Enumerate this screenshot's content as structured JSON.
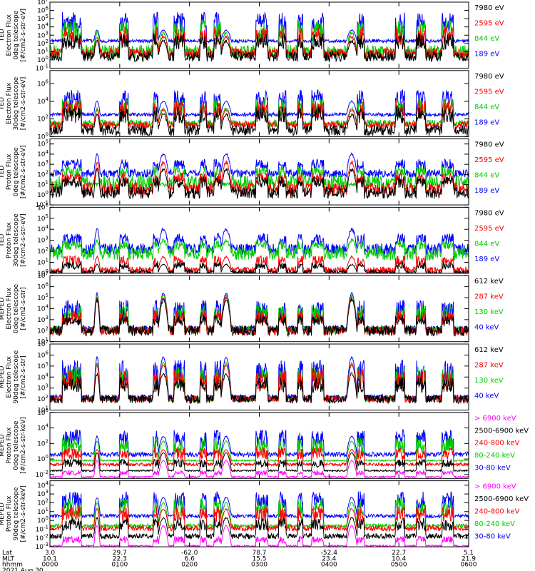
{
  "chart_data": {
    "type": "line",
    "title": "",
    "date_label": "2021 Aug 30",
    "axis_rows": [
      {
        "label": "Lat",
        "values": [
          "3.0",
          "29.7",
          "-62.0",
          "78.7",
          "-52.4",
          "22.7",
          "5.1"
        ]
      },
      {
        "label": "MLT",
        "values": [
          "10.1",
          "22.3",
          "6.6",
          "15.5",
          "23.4",
          "10.4",
          "21.9"
        ]
      },
      {
        "label": "hhmm",
        "values": [
          "0000",
          "0100",
          "0200",
          "0300",
          "0400",
          "0500",
          "0600"
        ]
      }
    ],
    "x_hours": [
      0,
      1,
      2,
      3,
      4,
      5,
      6
    ],
    "panels": [
      {
        "ylabel": [
          "TED",
          "Electron Flux",
          "0deg telescope",
          "[#/cm2-s-str-eV]"
        ],
        "yticks": [
          {
            "v": -1,
            "t": "10^-1"
          },
          {
            "v": 0,
            "t": "10^0"
          },
          {
            "v": 1,
            "t": "10^1"
          },
          {
            "v": 2,
            "t": "10^2"
          },
          {
            "v": 3,
            "t": "10^3"
          },
          {
            "v": 4,
            "t": "10^4"
          },
          {
            "v": 5,
            "t": "10^5"
          },
          {
            "v": 6,
            "t": "10^6"
          },
          {
            "v": 7,
            "t": "10^7"
          }
        ],
        "ylim": [
          -1,
          7
        ],
        "legend": [
          {
            "name": "7980 eV",
            "color": "#000000"
          },
          {
            "name": "2595 eV",
            "color": "#ff0000"
          },
          {
            "name": "844 eV",
            "color": "#00cc00"
          },
          {
            "name": "189 eV",
            "color": "#0000ff"
          }
        ],
        "series": [
          {
            "color": "#0000ff",
            "base": 2.3,
            "noise": 0.2,
            "arch": 3.6,
            "spike": 5.8
          },
          {
            "color": "#00cc00",
            "base": 1.0,
            "noise": 0.8,
            "arch": 3.3,
            "spike": 4.8
          },
          {
            "color": "#ff0000",
            "base": 0.8,
            "noise": 0.6,
            "arch": 2.8,
            "spike": 4.0
          },
          {
            "color": "#000000",
            "base": 0.4,
            "noise": 0.6,
            "arch": 2.3,
            "spike": 3.2
          }
        ]
      },
      {
        "ylabel": [
          "TED",
          "Electron Flux",
          "30deg telescope",
          "[#/cm2-s-str-eV]"
        ],
        "yticks": [
          {
            "v": 0,
            "t": "10^0"
          },
          {
            "v": 2,
            "t": "10^2"
          },
          {
            "v": 4,
            "t": "10^4"
          },
          {
            "v": 6,
            "t": "10^6"
          }
        ],
        "ylim": [
          0,
          7.5
        ],
        "legend": [
          {
            "name": "7980 eV",
            "color": "#000000"
          },
          {
            "name": "2595 eV",
            "color": "#ff0000"
          },
          {
            "name": "844 eV",
            "color": "#00cc00"
          },
          {
            "name": "189 eV",
            "color": "#0000ff"
          }
        ],
        "series": [
          {
            "color": "#0000ff",
            "base": 2.5,
            "noise": 0.2,
            "arch": 4.0,
            "spike": 5.3
          },
          {
            "color": "#00cc00",
            "base": 1.5,
            "noise": 0.4,
            "arch": 3.2,
            "spike": 4.3
          },
          {
            "color": "#ff0000",
            "base": 1.3,
            "noise": 0.4,
            "arch": 3.0,
            "spike": 4.1
          },
          {
            "color": "#000000",
            "base": 0.7,
            "noise": 0.6,
            "arch": 2.5,
            "spike": 3.4
          }
        ]
      },
      {
        "ylabel": [
          "TED",
          "Proton Flux",
          "0deg telescope",
          "[#/cm2-s-str-eV]"
        ],
        "yticks": [
          {
            "v": -1,
            "t": "10^-1"
          },
          {
            "v": 0,
            "t": "10^0"
          },
          {
            "v": 1,
            "t": "10^1"
          },
          {
            "v": 2,
            "t": "10^2"
          },
          {
            "v": 3,
            "t": "10^3"
          },
          {
            "v": 4,
            "t": "10^4"
          },
          {
            "v": 5,
            "t": "10^5"
          }
        ],
        "ylim": [
          -1,
          5.5
        ],
        "legend": [
          {
            "name": "7980 eV",
            "color": "#000000"
          },
          {
            "name": "2595 eV",
            "color": "#ff0000"
          },
          {
            "name": "844 eV",
            "color": "#00cc00"
          },
          {
            "name": "189 eV",
            "color": "#0000ff"
          }
        ],
        "series": [
          {
            "color": "#0000ff",
            "base": 2.1,
            "noise": 0.4,
            "arch": 4.0,
            "spike": 3.5
          },
          {
            "color": "#00cc00",
            "base": 1.2,
            "noise": 0.7,
            "arch": 1.0,
            "spike": 2.8
          },
          {
            "color": "#ff0000",
            "base": 0.6,
            "noise": 0.6,
            "arch": 3.2,
            "spike": 2.2
          },
          {
            "color": "#000000",
            "base": 0.2,
            "noise": 0.6,
            "arch": 2.5,
            "spike": 1.8
          }
        ]
      },
      {
        "ylabel": [
          "TED",
          "Proton Flux",
          "30deg telescope",
          "[#/cm2-s-str-eV]"
        ],
        "yticks": [
          {
            "v": 0,
            "t": "10^0"
          },
          {
            "v": 1,
            "t": "10^1"
          },
          {
            "v": 2,
            "t": "10^2"
          },
          {
            "v": 3,
            "t": "10^3"
          },
          {
            "v": 4,
            "t": "10^4"
          },
          {
            "v": 5,
            "t": "10^5"
          },
          {
            "v": 6,
            "t": "10^6"
          }
        ],
        "ylim": [
          0,
          6
        ],
        "legend": [
          {
            "name": "7980 eV",
            "color": "#000000"
          },
          {
            "name": "2595 eV",
            "color": "#ff0000"
          },
          {
            "name": "844 eV",
            "color": "#00cc00"
          },
          {
            "name": "189 eV",
            "color": "#0000ff"
          }
        ],
        "series": [
          {
            "color": "#0000ff",
            "base": 2.2,
            "noise": 0.5,
            "arch": 4.0,
            "spike": 3.6
          },
          {
            "color": "#00cc00",
            "base": 1.8,
            "noise": 0.6,
            "arch": 3.0,
            "spike": 3.0
          },
          {
            "color": "#ff0000",
            "base": 0.3,
            "noise": 0.3,
            "arch": 1.5,
            "spike": 1.6
          },
          {
            "color": "#000000",
            "base": 0.1,
            "noise": 0.2,
            "arch": 0.8,
            "spike": 1.0
          }
        ]
      },
      {
        "ylabel": [
          "MEPED",
          "Electron Flux",
          "0deg telescope",
          "[#/cm2-s-str]"
        ],
        "yticks": [
          {
            "v": 1,
            "t": "10^1"
          },
          {
            "v": 2,
            "t": "10^2"
          },
          {
            "v": 3,
            "t": "10^3"
          },
          {
            "v": 4,
            "t": "10^4"
          },
          {
            "v": 5,
            "t": "10^5"
          },
          {
            "v": 6,
            "t": "10^6"
          },
          {
            "v": 7,
            "t": "10^7"
          }
        ],
        "ylim": [
          1,
          7
        ],
        "legend": [
          {
            "name": "612 keV",
            "color": "#000000"
          },
          {
            "name": "287 keV",
            "color": "#ff0000"
          },
          {
            "name": "130 keV",
            "color": "#00cc00"
          },
          {
            "name": "40 keV",
            "color": "#0000ff"
          }
        ],
        "series": [
          {
            "color": "#0000ff",
            "base": 2.2,
            "noise": 0.25,
            "arch": 5.4,
            "spike": 4.8
          },
          {
            "color": "#00cc00",
            "base": 2.1,
            "noise": 0.3,
            "arch": 5.2,
            "spike": 4.3
          },
          {
            "color": "#ff0000",
            "base": 2.0,
            "noise": 0.4,
            "arch": 5.0,
            "spike": 3.8
          },
          {
            "color": "#000000",
            "base": 2.0,
            "noise": 0.5,
            "arch": 4.8,
            "spike": 3.4
          }
        ]
      },
      {
        "ylabel": [
          "MEPED",
          "Electron Flux",
          "90deg telescope",
          "[#/cm2-s-str]"
        ],
        "yticks": [
          {
            "v": 1,
            "t": "10^1"
          },
          {
            "v": 2,
            "t": "10^2"
          },
          {
            "v": 3,
            "t": "10^3"
          },
          {
            "v": 4,
            "t": "10^4"
          },
          {
            "v": 5,
            "t": "10^5"
          },
          {
            "v": 6,
            "t": "10^6"
          },
          {
            "v": 7,
            "t": "10^7"
          }
        ],
        "ylim": [
          1,
          7
        ],
        "legend": [
          {
            "name": "612 keV",
            "color": "#000000"
          },
          {
            "name": "287 keV",
            "color": "#ff0000"
          },
          {
            "name": "130 keV",
            "color": "#00cc00"
          },
          {
            "name": "40 keV",
            "color": "#0000ff"
          }
        ],
        "series": [
          {
            "color": "#0000ff",
            "base": 2.2,
            "noise": 0.2,
            "arch": 5.8,
            "spike": 5.6
          },
          {
            "color": "#00cc00",
            "base": 2.0,
            "noise": 0.2,
            "arch": 5.3,
            "spike": 5.0
          },
          {
            "color": "#ff0000",
            "base": 2.0,
            "noise": 0.3,
            "arch": 5.1,
            "spike": 4.7
          },
          {
            "color": "#000000",
            "base": 2.0,
            "noise": 0.4,
            "arch": 4.3,
            "spike": 4.0
          }
        ]
      },
      {
        "ylabel": [
          "MEPED",
          "Proton Flux",
          "0deg telescope",
          "[#/cm2-s-str-keV]"
        ],
        "yticks": [
          {
            "v": -2,
            "t": "10^-2"
          },
          {
            "v": 0,
            "t": "10^0"
          },
          {
            "v": 2,
            "t": "10^2"
          },
          {
            "v": 4,
            "t": "10^4"
          },
          {
            "v": 6,
            "t": "10^6"
          }
        ],
        "ylim": [
          -2.5,
          6
        ],
        "legend": [
          {
            "name": "> 6900 keV",
            "color": "#ff00ff"
          },
          {
            "name": "2500-6900 keV",
            "color": "#000000"
          },
          {
            "name": "240-800 keV",
            "color": "#ff0000"
          },
          {
            "name": "80-240 keV",
            "color": "#00cc00"
          },
          {
            "name": "30-80 keV",
            "color": "#0000ff"
          }
        ],
        "series": [
          {
            "color": "#0000ff",
            "base": 0.6,
            "noise": 0.3,
            "arch": 2.9,
            "spike": 3.8
          },
          {
            "color": "#00cc00",
            "base": -0.2,
            "noise": 0.1,
            "arch": 2.3,
            "spike": 2.8
          },
          {
            "color": "#ff0000",
            "base": -0.7,
            "noise": 0.2,
            "arch": 1.2,
            "spike": 1.5
          },
          {
            "color": "#000000",
            "base": -1.5,
            "noise": 0.1,
            "arch": 0.8,
            "spike": 0.0
          },
          {
            "color": "#ff00ff",
            "base": -2.3,
            "noise": 0.1,
            "arch": -0.2,
            "spike": -1.5
          }
        ]
      },
      {
        "ylabel": [
          "MEPED",
          "Proton Flux",
          "90deg telescope",
          "[#/cm2-s-str-keV]"
        ],
        "yticks": [
          {
            "v": -3,
            "t": "10^-3"
          },
          {
            "v": -2,
            "t": "10^-2"
          },
          {
            "v": -1,
            "t": "10^-1"
          },
          {
            "v": 0,
            "t": "10^0"
          },
          {
            "v": 1,
            "t": "10^1"
          },
          {
            "v": 2,
            "t": "10^2"
          },
          {
            "v": 3,
            "t": "10^3"
          },
          {
            "v": 4,
            "t": "10^4"
          }
        ],
        "ylim": [
          -3,
          4.5
        ],
        "legend": [
          {
            "name": "> 6900 keV",
            "color": "#ff00ff"
          },
          {
            "name": "2500-6900 keV",
            "color": "#000000"
          },
          {
            "name": "240-800 keV",
            "color": "#ff0000"
          },
          {
            "name": "80-240 keV",
            "color": "#00cc00"
          },
          {
            "name": "30-80 keV",
            "color": "#0000ff"
          }
        ],
        "series": [
          {
            "color": "#0000ff",
            "base": 0.5,
            "noise": 0.2,
            "arch": 2.6,
            "spike": 3.3
          },
          {
            "color": "#00cc00",
            "base": -0.6,
            "noise": 0.2,
            "arch": 2.0,
            "spike": 2.5
          },
          {
            "color": "#ff0000",
            "base": -0.9,
            "noise": 0.3,
            "arch": 1.3,
            "spike": 1.6
          },
          {
            "color": "#000000",
            "base": -1.8,
            "noise": 0.3,
            "arch": 0.3,
            "spike": 0.3
          },
          {
            "color": "#ff00ff",
            "base": -2.9,
            "noise": 0.1,
            "arch": -0.6,
            "spike": -1.8
          }
        ]
      }
    ],
    "pass_windows_hours": [
      [
        0.18,
        0.45
      ],
      [
        0.63,
        0.72
      ],
      [
        1.0,
        1.12
      ],
      [
        1.48,
        1.6
      ],
      [
        1.78,
        1.93
      ],
      [
        2.15,
        2.24
      ],
      [
        2.35,
        2.52
      ],
      [
        2.95,
        3.12
      ],
      [
        3.28,
        3.38
      ],
      [
        3.55,
        3.62
      ],
      [
        3.75,
        3.92
      ],
      [
        4.32,
        4.5
      ],
      [
        4.95,
        5.08
      ],
      [
        5.25,
        5.38
      ],
      [
        5.62,
        5.78
      ]
    ],
    "arch_windows_hours": [
      [
        0.63,
        0.72
      ],
      [
        1.55,
        1.7
      ],
      [
        2.45,
        2.6
      ],
      [
        4.25,
        4.4
      ]
    ]
  }
}
